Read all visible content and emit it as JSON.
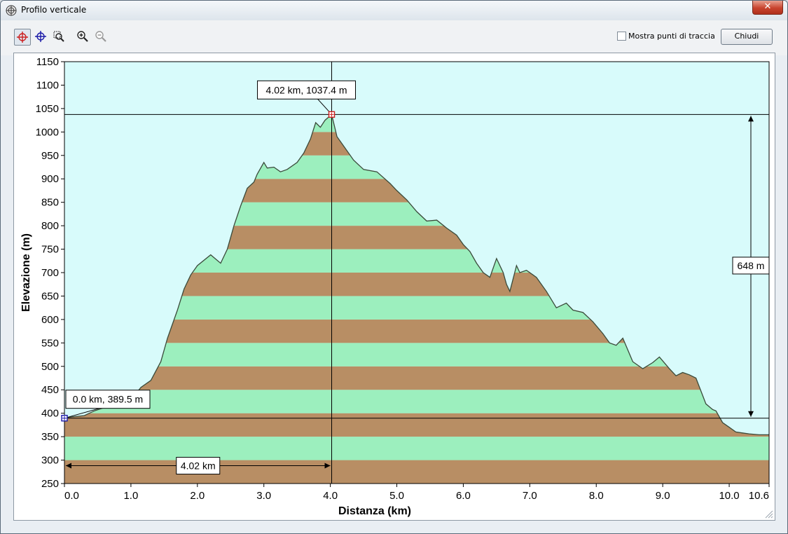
{
  "window": {
    "title": "Profilo verticale",
    "close_glyph": "✕",
    "app_icon": "globe-target-icon"
  },
  "toolbar": {
    "tools": [
      {
        "name": "cursor-red-crosshair-icon",
        "active": true
      },
      {
        "name": "cursor-blue-crosshair-icon",
        "active": false
      },
      {
        "name": "zoom-area-icon",
        "active": false
      },
      {
        "name": "zoom-in-icon",
        "active": false
      },
      {
        "name": "zoom-out-icon",
        "active": false
      }
    ],
    "show_points_label": "Mostra punti di traccia",
    "show_points_checked": false,
    "close_label": "Chiudi"
  },
  "colors": {
    "sky": "#d8fbfb",
    "band_brown": "#b88e64",
    "band_green": "#9cefbe",
    "profile_line": "#3a4a3a",
    "marker_start": "#1a1aa8",
    "marker_end": "#cc2020"
  },
  "chart_data": {
    "type": "area",
    "xlabel": "Distanza  (km)",
    "ylabel": "Elevazione  (m)",
    "xlim": [
      0,
      10.6
    ],
    "ylim": [
      250,
      1150
    ],
    "xticks": [
      0,
      1,
      2,
      3,
      4,
      5,
      6,
      7,
      8,
      9,
      10,
      10.6
    ],
    "xtick_labels": [
      "0.0",
      "1.0",
      "2.0",
      "3.0",
      "4.0",
      "5.0",
      "6.0",
      "7.0",
      "8.0",
      "9.0",
      "10.0",
      "10.6"
    ],
    "yticks": [
      250,
      300,
      350,
      400,
      450,
      500,
      550,
      600,
      650,
      700,
      750,
      800,
      850,
      900,
      950,
      1000,
      1050,
      1100,
      1150
    ],
    "band_step": 50,
    "series": [
      {
        "x": [
          0,
          0.1,
          0.3,
          0.45,
          0.6,
          0.8,
          1.0,
          1.15,
          1.3,
          1.45,
          1.55,
          1.7,
          1.8,
          1.9,
          2.0,
          2.2,
          2.35,
          2.45,
          2.55,
          2.65,
          2.75,
          2.85,
          2.9,
          3.0,
          3.05,
          3.15,
          3.25,
          3.35,
          3.5,
          3.6,
          3.7,
          3.78,
          3.85,
          3.92,
          4.02,
          4.1,
          4.2,
          4.35,
          4.5,
          4.7,
          4.9,
          5.0,
          5.15,
          5.3,
          5.45,
          5.6,
          5.75,
          5.9,
          6.0,
          6.1,
          6.2,
          6.3,
          6.4,
          6.5,
          6.6,
          6.65,
          6.7,
          6.8,
          6.85,
          6.95,
          7.1,
          7.25,
          7.4,
          7.55,
          7.65,
          7.8,
          7.95,
          8.1,
          8.2,
          8.3,
          8.4,
          8.55,
          8.7,
          8.85,
          8.95,
          9.1,
          9.2,
          9.3,
          9.4,
          9.5,
          9.65,
          9.75,
          9.8,
          9.9,
          10.0,
          10.1,
          10.2,
          10.3,
          10.45,
          10.6
        ],
        "y": [
          389.5,
          392,
          395,
          405,
          412,
          418,
          428,
          455,
          470,
          510,
          560,
          620,
          665,
          695,
          715,
          738,
          720,
          750,
          800,
          842,
          880,
          893,
          910,
          935,
          923,
          925,
          915,
          920,
          935,
          955,
          985,
          1020,
          1010,
          1025,
          1037.4,
          990,
          970,
          940,
          920,
          915,
          890,
          875,
          855,
          830,
          810,
          812,
          795,
          780,
          760,
          745,
          720,
          700,
          690,
          730,
          700,
          675,
          660,
          715,
          700,
          705,
          690,
          660,
          625,
          635,
          620,
          615,
          595,
          570,
          550,
          545,
          560,
          510,
          495,
          508,
          520,
          495,
          480,
          487,
          482,
          475,
          420,
          408,
          405,
          380,
          370,
          360,
          358,
          356,
          354,
          354
        ]
      }
    ],
    "annotations": {
      "start_label": "0.0 km, 389.5 m",
      "cursor_label": "4.02 km, 1037.4 m",
      "distance_label": "4.02 km",
      "elevation_diff_label": "648 m",
      "start": {
        "x": 0.0,
        "y": 389.5
      },
      "cursor": {
        "x": 4.02,
        "y": 1037.4
      }
    }
  }
}
